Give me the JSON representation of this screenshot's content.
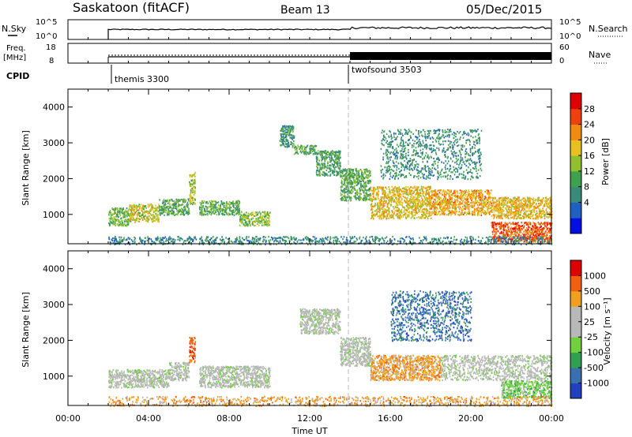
{
  "header": {
    "station": "Saskatoon (fitACF)",
    "beam": "Beam 13",
    "date": "05/Dec/2015"
  },
  "status_panels": {
    "nsky_label": "N.Sky",
    "nsky_ticks": [
      "10^5",
      "10^0"
    ],
    "nsearch_label": "N.Search",
    "nsearch_ticks": [
      "10^5",
      "10^0"
    ],
    "freq_label_line1": "Freq.",
    "freq_label_line2": "[MHz]",
    "freq_ticks": [
      "18",
      "8"
    ],
    "nave_label": "Nave",
    "nave_ticks": [
      "60",
      "0"
    ],
    "cpid_label": "CPID",
    "cpid_modes": [
      {
        "name": "themis 3300",
        "start_hour": 2.0
      },
      {
        "name": "twofsound 3503",
        "start_hour": 14.0
      }
    ]
  },
  "chart_data": [
    {
      "type": "heatmap",
      "name": "power",
      "ylabel": "Slant Range [km]",
      "xlabel": "",
      "xlim": [
        0,
        24
      ],
      "ylim": [
        180,
        4500
      ],
      "yticks": [
        1000,
        2000,
        3000,
        4000
      ],
      "colorbar": {
        "label": "Power [dB]",
        "ticks": [
          "4",
          "8",
          "12",
          "16",
          "20",
          "24",
          "28"
        ],
        "range": [
          0,
          32
        ],
        "colors": [
          "#0010e0",
          "#2060c0",
          "#3a8a7a",
          "#3fa050",
          "#90c030",
          "#e8c020",
          "#f08a10",
          "#f04010",
          "#e00000"
        ]
      },
      "scatter_regions": [
        {
          "t0": 2.0,
          "t1": 3.0,
          "r0": 700,
          "r1": 1200,
          "level": 14
        },
        {
          "t0": 3.0,
          "t1": 4.5,
          "r0": 800,
          "r1": 1300,
          "level": 18
        },
        {
          "t0": 4.5,
          "t1": 6.0,
          "r0": 1000,
          "r1": 1450,
          "level": 12
        },
        {
          "t0": 6.0,
          "t1": 6.3,
          "r0": 1300,
          "r1": 2200,
          "level": 16
        },
        {
          "t0": 6.5,
          "t1": 8.5,
          "r0": 1000,
          "r1": 1400,
          "level": 13
        },
        {
          "t0": 8.5,
          "t1": 10.0,
          "r0": 700,
          "r1": 1100,
          "level": 16
        },
        {
          "t0": 10.5,
          "t1": 11.2,
          "r0": 2900,
          "r1": 3500,
          "level": 10
        },
        {
          "t0": 11.2,
          "t1": 12.3,
          "r0": 2700,
          "r1": 2950,
          "level": 12
        },
        {
          "t0": 12.3,
          "t1": 13.5,
          "r0": 2100,
          "r1": 2800,
          "level": 11
        },
        {
          "t0": 13.5,
          "t1": 15.0,
          "r0": 1400,
          "r1": 2300,
          "level": 13
        },
        {
          "t0": 15.0,
          "t1": 18.0,
          "r0": 900,
          "r1": 1800,
          "level": 20
        },
        {
          "t0": 18.0,
          "t1": 21.0,
          "r0": 1000,
          "r1": 1700,
          "level": 22
        },
        {
          "t0": 21.0,
          "t1": 24.0,
          "r0": 250,
          "r1": 800,
          "level": 27
        },
        {
          "t0": 21.0,
          "t1": 24.0,
          "r0": 900,
          "r1": 1500,
          "level": 21
        },
        {
          "t0": 15.5,
          "t1": 20.5,
          "r0": 2000,
          "r1": 3400,
          "level": 9
        },
        {
          "t0": 2.0,
          "t1": 24.0,
          "r0": 180,
          "r1": 400,
          "level": 8
        }
      ]
    },
    {
      "type": "heatmap",
      "name": "velocity",
      "ylabel": "Slant Range [km]",
      "xlabel": "Time UT",
      "xlim": [
        0,
        24
      ],
      "ylim": [
        180,
        4500
      ],
      "xticks": [
        "00:00",
        "04:00",
        "08:00",
        "12:00",
        "16:00",
        "20:00",
        "00:00"
      ],
      "yticks": [
        1000,
        2000,
        3000,
        4000
      ],
      "colorbar": {
        "label": "Velocity [m s⁻¹]",
        "ticks": [
          "1000",
          "500",
          "100",
          "25",
          "-25",
          "-100",
          "-500",
          "-1000"
        ],
        "colors": [
          "#2040c0",
          "#3a70b0",
          "#30a050",
          "#70d040",
          "#b8b8b8",
          "#b8b8b8",
          "#f0a020",
          "#f06010",
          "#e00000"
        ]
      },
      "scatter_regions": [
        {
          "t0": 2.0,
          "t1": 5.0,
          "r0": 700,
          "r1": 1200,
          "level": 4
        },
        {
          "t0": 5.0,
          "t1": 6.0,
          "r0": 900,
          "r1": 1400,
          "level": 4
        },
        {
          "t0": 6.0,
          "t1": 6.3,
          "r0": 1400,
          "r1": 2100,
          "level": 7
        },
        {
          "t0": 6.5,
          "t1": 10.0,
          "r0": 700,
          "r1": 1300,
          "level": 4
        },
        {
          "t0": 11.5,
          "t1": 13.5,
          "r0": 2200,
          "r1": 2900,
          "level": 4
        },
        {
          "t0": 13.5,
          "t1": 15.0,
          "r0": 1300,
          "r1": 2100,
          "level": 4
        },
        {
          "t0": 15.0,
          "t1": 18.5,
          "r0": 900,
          "r1": 1600,
          "level": 6
        },
        {
          "t0": 18.5,
          "t1": 24.0,
          "r0": 900,
          "r1": 1600,
          "level": 4
        },
        {
          "t0": 16.0,
          "t1": 20.0,
          "r0": 2000,
          "r1": 3400,
          "level": 1
        },
        {
          "t0": 21.5,
          "t1": 24.0,
          "r0": 400,
          "r1": 900,
          "level": 3
        },
        {
          "t0": 2.0,
          "t1": 24.0,
          "r0": 180,
          "r1": 450,
          "level": 6
        }
      ]
    }
  ]
}
